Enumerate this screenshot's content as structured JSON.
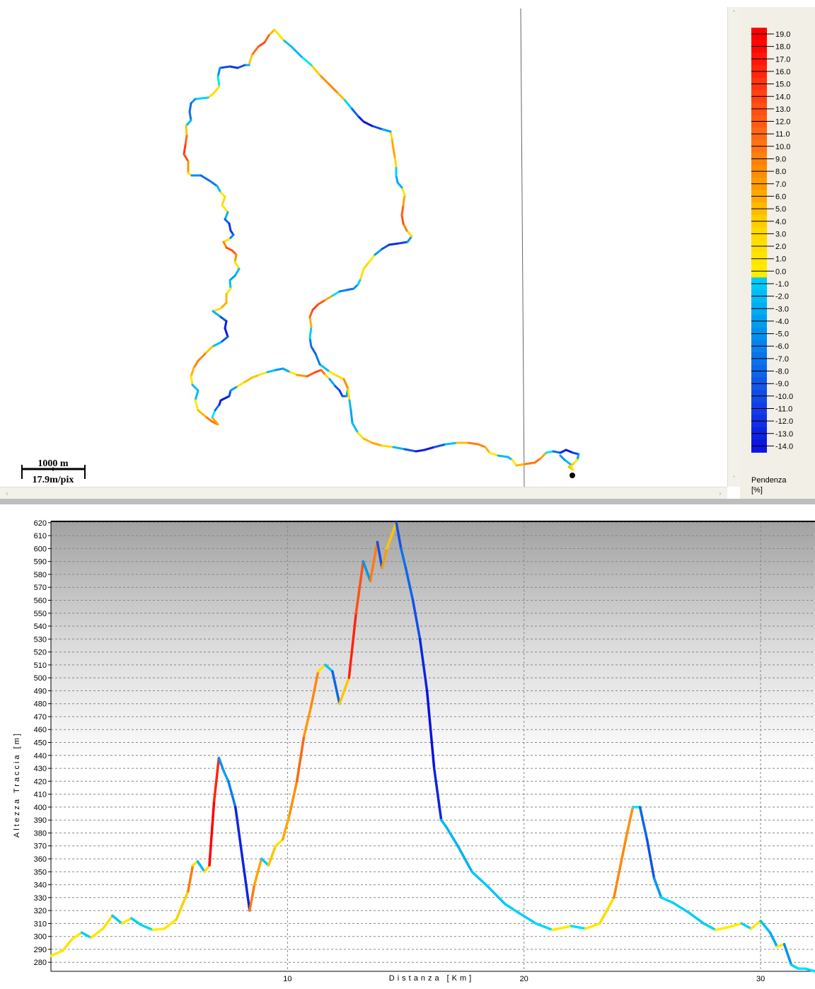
{
  "map": {
    "scale_bar": {
      "distance_label": "1000 m",
      "resolution_label": "17.9m/pix"
    }
  },
  "legend": {
    "title": "Pendenza",
    "unit": "[%]",
    "labels": [
      "19.0",
      "18.0",
      "17.0",
      "16.0",
      "15.0",
      "14.0",
      "13.0",
      "12.0",
      "11.0",
      "10.0",
      "9.0",
      "8.0",
      "7.0",
      "6.0",
      "5.0",
      "4.0",
      "3.0",
      "2.0",
      "1.0",
      "0.0",
      "-1.0",
      "-2.0",
      "-3.0",
      "-4.0",
      "-5.0",
      "-6.0",
      "-7.0",
      "-8.0",
      "-9.0",
      "-10.0",
      "-11.0",
      "-12.0",
      "-13.0",
      "-14.0"
    ]
  },
  "profile": {
    "y_axis_label": "Altezza Traccia [m]",
    "x_axis_label": "Distanza [Km]",
    "y_ticks": [
      "620",
      "610",
      "600",
      "590",
      "580",
      "570",
      "560",
      "550",
      "540",
      "530",
      "520",
      "510",
      "500",
      "490",
      "480",
      "470",
      "460",
      "450",
      "440",
      "430",
      "420",
      "410",
      "400",
      "390",
      "380",
      "370",
      "360",
      "350",
      "340",
      "330",
      "320",
      "310",
      "300",
      "290",
      "280"
    ],
    "x_ticks": [
      "10",
      "20",
      "30"
    ]
  },
  "chart_data": {
    "type": "line",
    "title": "",
    "xlabel": "Distanza [Km]",
    "ylabel": "Altezza Traccia [m]",
    "xlim": [
      0,
      32.3
    ],
    "ylim": [
      273,
      621
    ],
    "grid": true,
    "color_encoding": "Pendenza [%]",
    "series": [
      {
        "x": [
          0,
          0.5,
          0.9,
          1.3,
          1.7,
          2.2,
          2.6,
          3.0,
          3.4,
          3.8,
          4.3,
          4.8,
          5.3,
          5.8,
          6.0,
          6.2,
          6.5,
          6.7,
          6.9,
          7.1,
          7.3,
          7.5,
          7.8,
          8.1,
          8.4,
          8.6,
          8.9,
          9.2,
          9.5,
          9.8,
          10.1,
          10.4,
          10.7,
          11.0,
          11.3,
          11.6,
          11.9,
          12.2,
          12.6,
          12.9,
          13.2,
          13.5,
          13.8,
          14.0,
          14.2,
          14.4,
          14.6,
          14.8,
          15.0,
          15.3,
          15.6,
          15.9,
          16.2,
          16.5,
          16.7,
          17.2,
          17.8,
          18.5,
          19.2,
          19.8,
          20.5,
          21.2,
          22.0,
          22.6,
          23.2,
          23.8,
          24.3,
          24.6,
          24.9,
          25.2,
          25.5,
          25.8,
          26.3,
          27.0,
          27.6,
          28.1,
          28.6,
          29.2,
          29.6,
          30.0,
          30.4,
          30.7,
          31.0,
          31.3,
          31.6,
          31.9,
          32.3
        ],
        "y": [
          285,
          289,
          298,
          303,
          299,
          306,
          316,
          310,
          314,
          309,
          305,
          306,
          313,
          335,
          355,
          358,
          350,
          355,
          405,
          438,
          428,
          420,
          400,
          360,
          320,
          340,
          360,
          355,
          370,
          375,
          395,
          420,
          455,
          478,
          505,
          510,
          505,
          480,
          500,
          550,
          590,
          575,
          605,
          585,
          600,
          610,
          620,
          600,
          585,
          560,
          530,
          490,
          430,
          390,
          385,
          370,
          350,
          338,
          325,
          318,
          310,
          305,
          308,
          306,
          310,
          330,
          375,
          400,
          400,
          375,
          345,
          330,
          326,
          318,
          310,
          305,
          307,
          310,
          306,
          312,
          303,
          292,
          294,
          278,
          275,
          275,
          273
        ]
      }
    ]
  },
  "colors": {
    "slope_ramp_high": "#ff0000",
    "slope_ramp_mid": "#ff8000",
    "slope_ramp_low": "#ffee00",
    "slope_ramp_zero": "#00e8f8",
    "slope_ramp_neg": "#0a10e0",
    "map_divider": "#666666",
    "chart_grid": "#888888"
  }
}
